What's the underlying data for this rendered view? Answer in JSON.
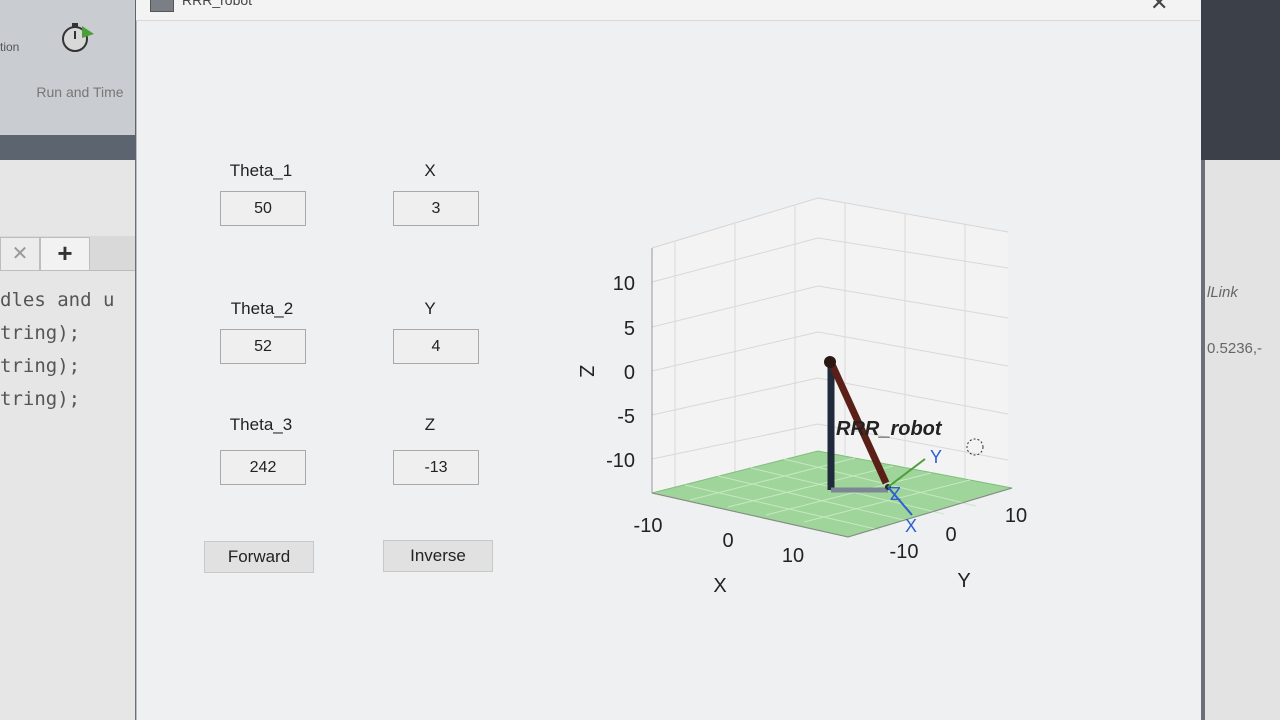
{
  "background_app": {
    "toolbar_left_label": "tion",
    "run_button_label": "Run and Time",
    "new_tab_glyph": "+",
    "close_tab_glyph": "✕",
    "code_lines": [
      "dles and u",
      "tring);",
      "tring);",
      "tring);"
    ],
    "right_text_1": "lLink",
    "right_text_2": "0.5236,-"
  },
  "window": {
    "title": "RRR_robot",
    "close_glyph": "✕"
  },
  "joints": {
    "theta1": {
      "label": "Theta_1",
      "value": "50"
    },
    "theta2": {
      "label": "Theta_2",
      "value": "52"
    },
    "theta3": {
      "label": "Theta_3",
      "value": "242"
    }
  },
  "position": {
    "x": {
      "label": "X",
      "value": "3"
    },
    "y": {
      "label": "Y",
      "value": "4"
    },
    "z": {
      "label": "Z",
      "value": "-13"
    }
  },
  "buttons": {
    "forward": "Forward",
    "inverse": "Inverse"
  },
  "plot": {
    "robot_label": "RRR_robot",
    "z_axis_label": "Z",
    "x_axis_label": "X",
    "y_axis_label": "Y",
    "z_ticks": [
      "10",
      "5",
      "0",
      "-5",
      "-10"
    ],
    "x_ticks": [
      "-10",
      "0",
      "10"
    ],
    "y_ticks": [
      "-10",
      "0",
      "10"
    ],
    "frame_x": "X",
    "frame_y": "Y",
    "frame_z": "Z",
    "colors": {
      "base_link": "#1f2a3a",
      "arm_link": "#5a2018",
      "floor": "#9fd49a",
      "frame_axis": "#3060d0"
    }
  }
}
